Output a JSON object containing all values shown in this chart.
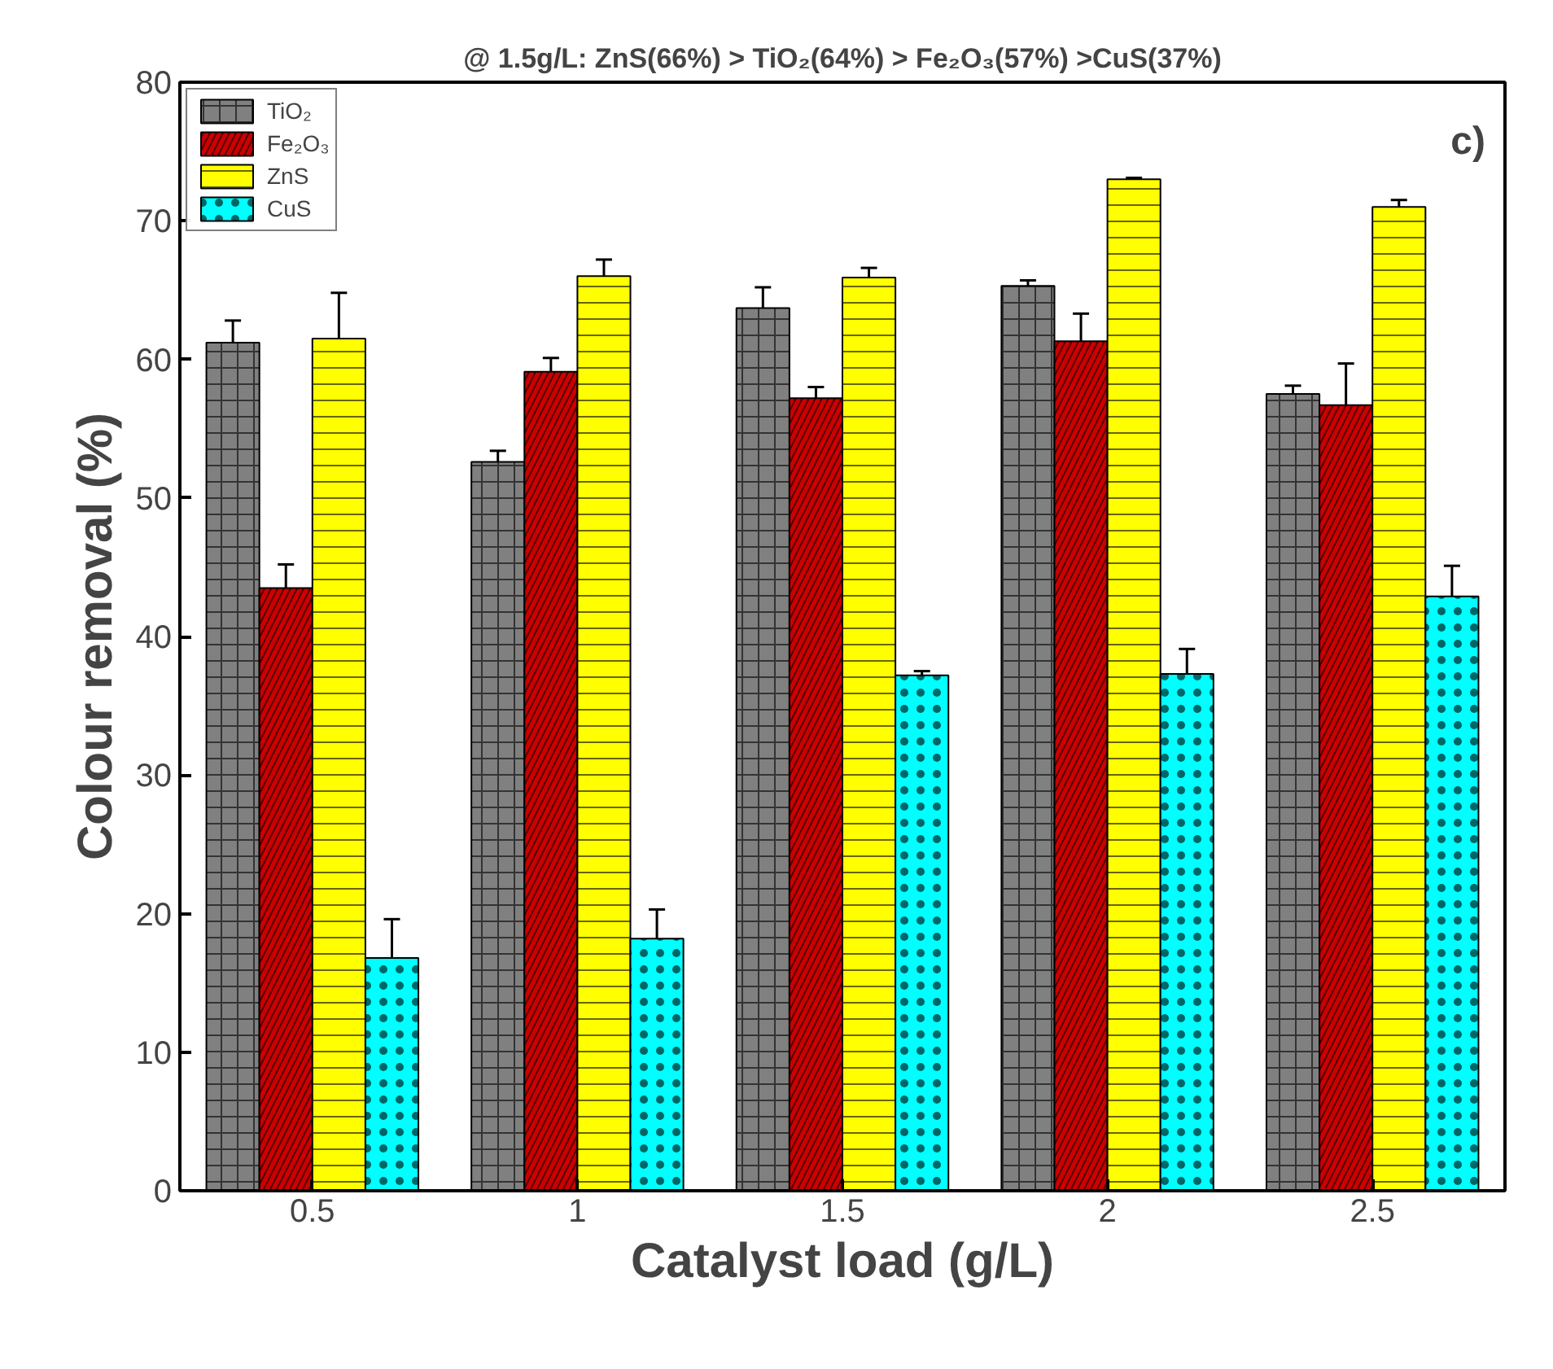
{
  "chart_data": {
    "type": "bar",
    "title": "@ 1.5g/L: ZnS(66%) > TiO₂(64%) > Fe₂O₃(57%) >CuS(37%)",
    "xlabel": "Catalyst load (g/L)",
    "ylabel": "Colour removal (%)",
    "categories": [
      "0.5",
      "1",
      "1.5",
      "2",
      "2.5"
    ],
    "series": [
      {
        "name": "TiO₂",
        "color": "#808080",
        "values": [
          61.2,
          52.6,
          63.7,
          65.3,
          57.5
        ],
        "errors": [
          1.6,
          0.8,
          1.5,
          0.4,
          0.6
        ]
      },
      {
        "name": "Fe₂O₃",
        "color": "#cc0000",
        "values": [
          43.5,
          59.1,
          57.2,
          61.3,
          56.7
        ],
        "errors": [
          1.7,
          1.0,
          0.8,
          2.0,
          3.0
        ]
      },
      {
        "name": "ZnS",
        "color": "#ffff00",
        "values": [
          61.5,
          66.0,
          65.9,
          73.0,
          71.0
        ],
        "errors": [
          3.3,
          1.2,
          0.7,
          0.1,
          0.5
        ]
      },
      {
        "name": "CuS",
        "color": "#00ffff",
        "values": [
          16.8,
          18.2,
          37.2,
          37.3,
          42.9
        ],
        "errors": [
          2.8,
          2.1,
          0.3,
          1.8,
          2.2
        ]
      }
    ],
    "ylim": [
      0,
      80
    ],
    "yticks": [
      0,
      10,
      20,
      30,
      40,
      50,
      60,
      70,
      80
    ],
    "annotations": [
      "c)"
    ],
    "grid": false,
    "legend": "top left"
  }
}
